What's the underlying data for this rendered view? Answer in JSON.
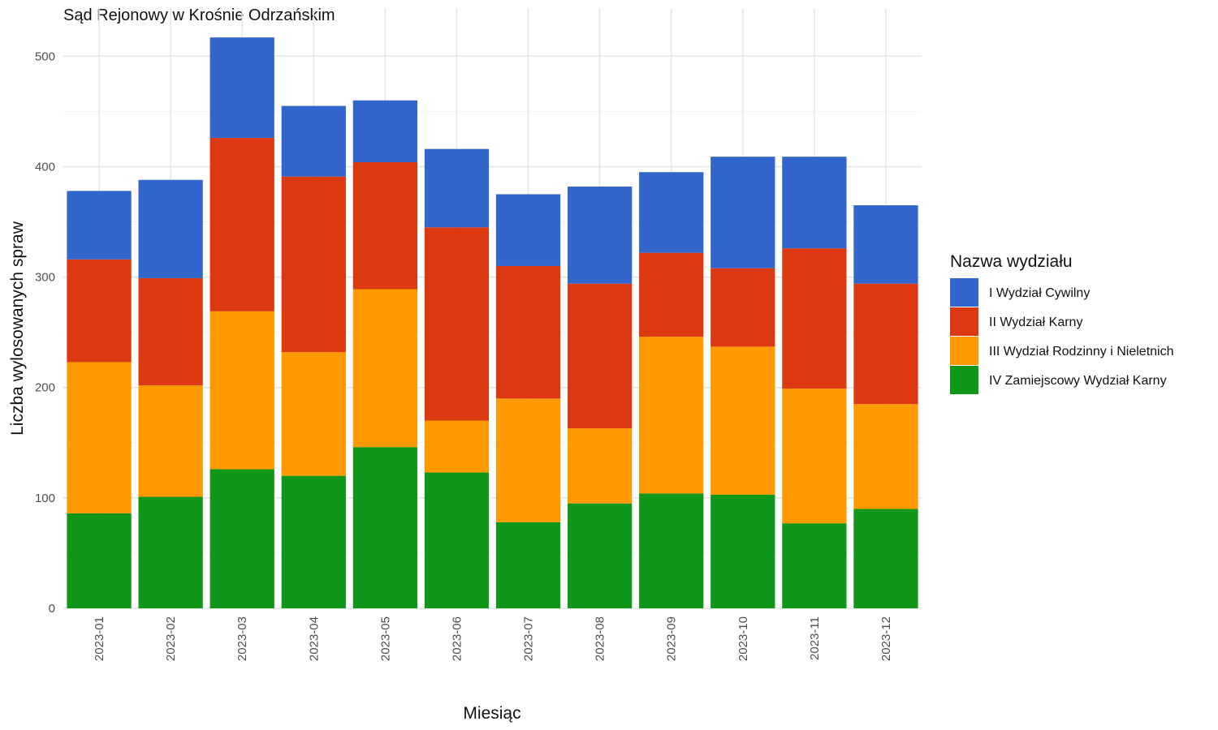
{
  "chart_data": {
    "type": "bar",
    "stacked": true,
    "title": "Sąd Rejonowy w Krośnie Odrzańskim",
    "xlabel": "Miesiąc",
    "ylabel": "Liczba wylosowanych spraw",
    "ylim": [
      0,
      530
    ],
    "yticks": [
      0,
      100,
      200,
      300,
      400,
      500
    ],
    "grid": true,
    "legend_title": "Nazwa wydziału",
    "legend_position": "right",
    "categories": [
      "2023-01",
      "2023-02",
      "2023-03",
      "2023-04",
      "2023-05",
      "2023-06",
      "2023-07",
      "2023-08",
      "2023-09",
      "2023-10",
      "2023-11",
      "2023-12"
    ],
    "series": [
      {
        "name": "I Wydział Cywilny",
        "color": "#3366CC",
        "values": [
          62,
          89,
          91,
          64,
          56,
          71,
          65,
          88,
          73,
          101,
          83,
          71
        ]
      },
      {
        "name": "II Wydział Karny",
        "color": "#DC3912",
        "values": [
          93,
          97,
          157,
          159,
          115,
          175,
          120,
          131,
          76,
          71,
          127,
          109
        ]
      },
      {
        "name": "III Wydział Rodzinny i Nieletnich",
        "color": "#FF9900",
        "values": [
          137,
          101,
          143,
          112,
          143,
          47,
          112,
          68,
          142,
          134,
          122,
          95
        ]
      },
      {
        "name": "IV Zamiejscowy Wydział Karny",
        "color": "#109618",
        "values": [
          86,
          101,
          126,
          120,
          146,
          123,
          78,
          95,
          104,
          103,
          77,
          90
        ]
      }
    ]
  }
}
